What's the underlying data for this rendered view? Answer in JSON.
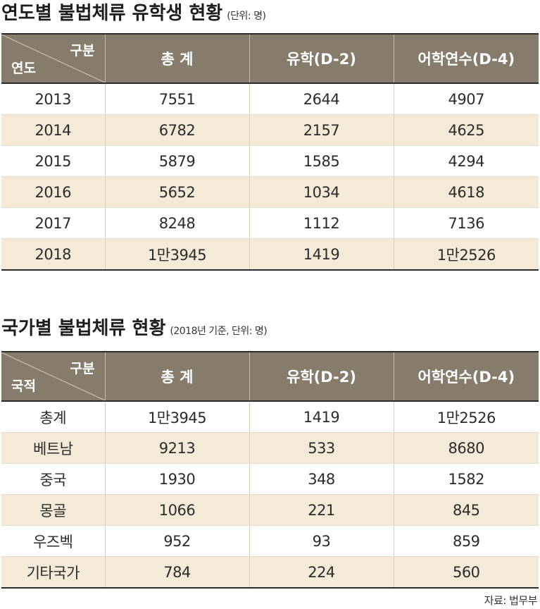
{
  "table1": {
    "title": "연도별 불법체류 유학생 현황",
    "note": "(단위: 명)",
    "corner_top": "구분",
    "corner_bottom": "연도",
    "headers": [
      "총 계",
      "유학(D-2)",
      "어학연수(D-4)"
    ],
    "rows": [
      {
        "label": "2013",
        "total": "7551",
        "d2": "2644",
        "d4": "4907"
      },
      {
        "label": "2014",
        "total": "6782",
        "d2": "2157",
        "d4": "4625"
      },
      {
        "label": "2015",
        "total": "5879",
        "d2": "1585",
        "d4": "4294"
      },
      {
        "label": "2016",
        "total": "5652",
        "d2": "1034",
        "d4": "4618"
      },
      {
        "label": "2017",
        "total": "8248",
        "d2": "1112",
        "d4": "7136"
      },
      {
        "label": "2018",
        "total": "1만3945",
        "d2": "1419",
        "d4": "1만2526"
      }
    ]
  },
  "table2": {
    "title": "국가별 불법체류 현황",
    "note": "(2018년 기준, 단위: 명)",
    "corner_top": "구분",
    "corner_bottom": "국적",
    "headers": [
      "총 계",
      "유학(D-2)",
      "어학연수(D-4)"
    ],
    "rows": [
      {
        "label": "총계",
        "total": "1만3945",
        "d2": "1419",
        "d4": "1만2526"
      },
      {
        "label": "베트남",
        "total": "9213",
        "d2": "533",
        "d4": "8680"
      },
      {
        "label": "중국",
        "total": "1930",
        "d2": "348",
        "d4": "1582"
      },
      {
        "label": "몽골",
        "total": "1066",
        "d2": "221",
        "d4": "845"
      },
      {
        "label": "우즈벡",
        "total": "952",
        "d2": "93",
        "d4": "859"
      },
      {
        "label": "기타국가",
        "total": "784",
        "d2": "224",
        "d4": "560"
      }
    ]
  },
  "source": "자료: 법무부"
}
